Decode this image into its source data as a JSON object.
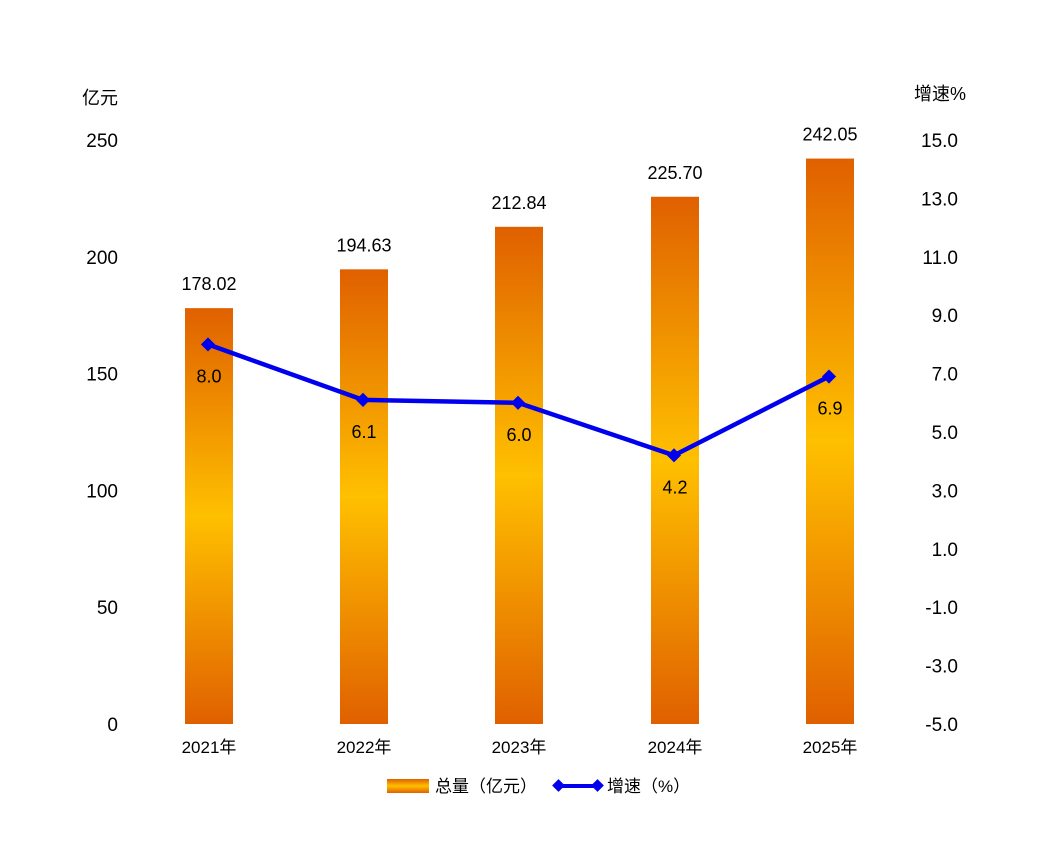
{
  "chart_data": {
    "type": "bar-line",
    "categories": [
      "2021年",
      "2022年",
      "2023年",
      "2024年",
      "2025年"
    ],
    "series": [
      {
        "name": "总量（亿元）",
        "type": "bar",
        "axis": "left",
        "values": [
          178.02,
          194.63,
          212.84,
          225.7,
          242.05
        ],
        "labels": [
          "178.02",
          "194.63",
          "212.84",
          "225.70",
          "242.05"
        ]
      },
      {
        "name": "增速（%）",
        "type": "line",
        "axis": "right",
        "values": [
          8.0,
          6.1,
          6.0,
          4.2,
          6.9
        ],
        "labels": [
          "8.0",
          "6.1",
          "6.0",
          "4.2",
          "6.9"
        ]
      }
    ],
    "y_left": {
      "unit": "亿元",
      "ylim": [
        0,
        250
      ],
      "ticks": [
        "0",
        "50",
        "100",
        "150",
        "200",
        "250"
      ]
    },
    "y_right": {
      "unit": "增速%",
      "ylim": [
        -5.0,
        15.0
      ],
      "ticks": [
        "-5.0",
        "-3.0",
        "-1.0",
        "1.0",
        "3.0",
        "5.0",
        "7.0",
        "9.0",
        "11.0",
        "13.0",
        "15.0"
      ]
    },
    "grid": false,
    "legend_position": "bottom",
    "colors": {
      "bar_dark": "#E06000",
      "bar_light": "#FFC000",
      "line": "#0000EE"
    }
  }
}
